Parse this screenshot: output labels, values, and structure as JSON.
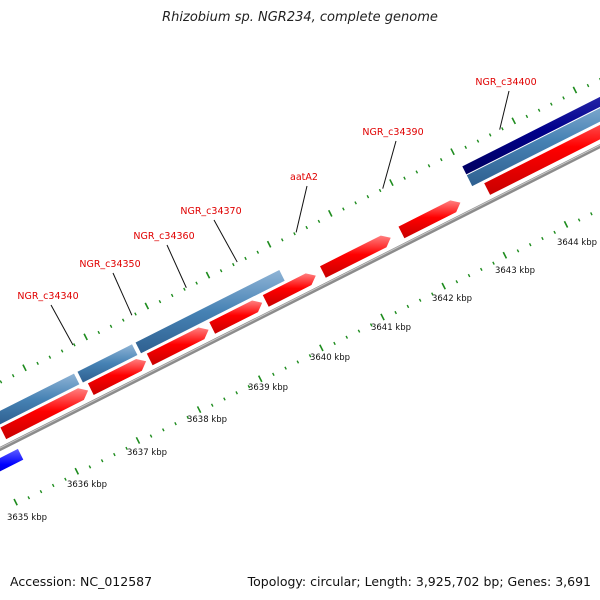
{
  "title": "Rhizobium sp. NGR234, complete genome",
  "footer": {
    "accession": "Accession: NC_012587",
    "topology": "Topology: circular; Length: 3,925,702 bp; Genes: 3,691"
  },
  "colors": {
    "gene_label": "#e00000",
    "cds": "#ff0000",
    "gene": "#4682b4",
    "gene_dark": "#00008b",
    "gene_blue": "#0000ff",
    "backbone": "#8c8c8c",
    "tick": "#1e8c1e"
  },
  "genes": [
    {
      "name": "NGR_c34340"
    },
    {
      "name": "NGR_c34350"
    },
    {
      "name": "NGR_c34360"
    },
    {
      "name": "NGR_c34370"
    },
    {
      "name": "aatA2"
    },
    {
      "name": "NGR_c34390"
    },
    {
      "name": "NGR_c34400"
    }
  ],
  "kbp_ticks": [
    {
      "label": "3635 kbp"
    },
    {
      "label": "3636 kbp"
    },
    {
      "label": "3637 kbp"
    },
    {
      "label": "3638 kbp"
    },
    {
      "label": "3639 kbp"
    },
    {
      "label": "3640 kbp"
    },
    {
      "label": "3641 kbp"
    },
    {
      "label": "3642 kbp"
    },
    {
      "label": "3643 kbp"
    },
    {
      "label": "3644 kbp"
    }
  ]
}
